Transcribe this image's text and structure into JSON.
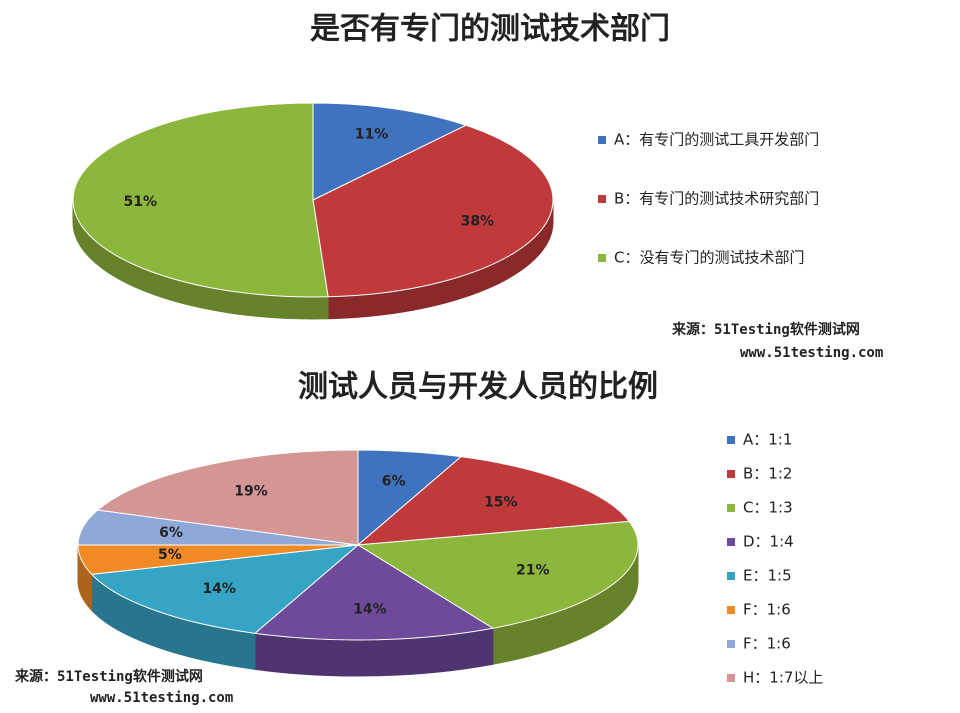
{
  "chart_data": [
    {
      "type": "pie",
      "title": "是否有专门的测试技术部门",
      "categories": [
        "A：有专门的测试工具开发部门",
        "B：有专门的测试技术研究部门",
        "C：没有专门的测试技术部门"
      ],
      "values": [
        11,
        38,
        51
      ],
      "value_labels": [
        "11%",
        "38%",
        "51%"
      ],
      "colors": [
        "#3f73c0",
        "#c0393b",
        "#8db63c"
      ],
      "source": [
        "来源：51Testing软件测试网",
        "www.51testing.com"
      ]
    },
    {
      "type": "pie",
      "title": "测试人员与开发人员的比例",
      "categories": [
        "A：1:1",
        "B：1:2",
        "C：1:3",
        "D：1:4",
        "E：1:5",
        "F：1:6",
        "F：1:6",
        "H：1:7以上"
      ],
      "values": [
        6,
        15,
        21,
        14,
        14,
        5,
        6,
        19
      ],
      "value_labels": [
        "6%",
        "15%",
        "21%",
        "14%",
        "14%",
        "5%",
        "6%",
        "19%"
      ],
      "colors": [
        "#3f73c0",
        "#c0393b",
        "#8db63c",
        "#6e4a9a",
        "#36a4c4",
        "#f08a24",
        "#8fa8d8",
        "#d49595"
      ],
      "source": [
        "来源：51Testing软件测试网",
        "www.51testing.com"
      ]
    }
  ]
}
